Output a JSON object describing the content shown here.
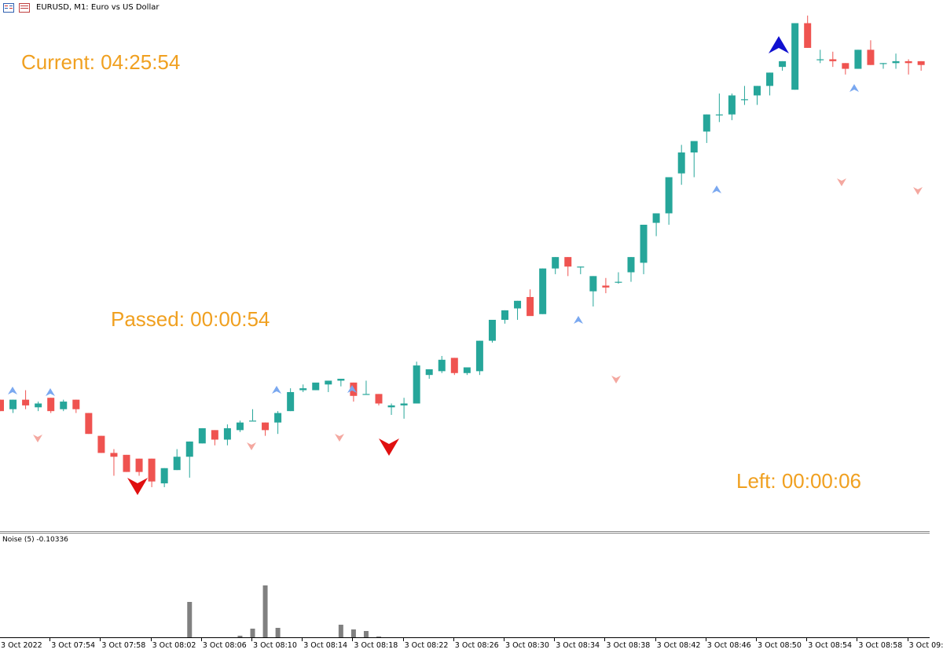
{
  "window": {
    "title": "EURUSD, M1:  Euro vs US Dollar",
    "icon": "chart-window-icon"
  },
  "timers": {
    "current": "Current: 04:25:54",
    "passed": "Passed: 00:00:54",
    "left": "Left: 00:00:06"
  },
  "indicator": {
    "label": "Noise (5) -0.10336"
  },
  "colors": {
    "bull": "#26a69a",
    "bear": "#ef5350",
    "timer": "#f0a020",
    "noise_bar": "#808080",
    "arrow_up_big": "#1010d0",
    "arrow_down_big": "#e01010",
    "arrow_up_small": "#7aa8f0",
    "arrow_down_small": "#f4a8a0"
  },
  "xaxis": {
    "labels": [
      "3 Oct 2022",
      "3 Oct 07:54",
      "3 Oct 07:58",
      "3 Oct 08:02",
      "3 Oct 08:06",
      "3 Oct 08:10",
      "3 Oct 08:14",
      "3 Oct 08:18",
      "3 Oct 08:22",
      "3 Oct 08:26",
      "3 Oct 08:30",
      "3 Oct 08:34",
      "3 Oct 08:38",
      "3 Oct 08:42",
      "3 Oct 08:46",
      "3 Oct 08:50",
      "3 Oct 08:54",
      "3 Oct 08:58",
      "3 Oct 09:"
    ]
  },
  "chart_data": [
    {
      "type": "candlestick",
      "title": "EURUSD, M1:  Euro vs US Dollar",
      "candles": [
        {
          "o": 1.6,
          "h": 1.6,
          "l": 0.4,
          "c": 0.4
        },
        {
          "o": 0.6,
          "h": 1.6,
          "l": 0.2,
          "c": 1.6
        },
        {
          "o": 1.6,
          "h": 2.6,
          "l": 0.6,
          "c": 1.0
        },
        {
          "o": 0.8,
          "h": 1.4,
          "l": 0.4,
          "c": 1.2
        },
        {
          "o": 1.8,
          "h": 1.8,
          "l": 0.2,
          "c": 0.4
        },
        {
          "o": 0.6,
          "h": 1.6,
          "l": 0.4,
          "c": 1.4
        },
        {
          "o": 1.6,
          "h": 1.6,
          "l": 0.2,
          "c": 0.6
        },
        {
          "o": 0.2,
          "h": 0.2,
          "l": -2.0,
          "c": -2.0
        },
        {
          "o": -2.2,
          "h": -2.2,
          "l": -4.0,
          "c": -4.0
        },
        {
          "o": -4.0,
          "h": -3.6,
          "l": -6.4,
          "c": -4.4
        },
        {
          "o": -4.2,
          "h": -4.2,
          "l": -6.0,
          "c": -6.0
        },
        {
          "o": -4.6,
          "h": -4.6,
          "l": -6.4,
          "c": -6.0
        },
        {
          "o": -4.6,
          "h": -4.6,
          "l": -7.6,
          "c": -7.0
        },
        {
          "o": -7.2,
          "h": -5.6,
          "l": -7.6,
          "c": -5.6
        },
        {
          "o": -5.8,
          "h": -3.6,
          "l": -5.8,
          "c": -4.4
        },
        {
          "o": -4.4,
          "h": -2.8,
          "l": -6.6,
          "c": -2.8
        },
        {
          "o": -3.0,
          "h": -1.4,
          "l": -3.0,
          "c": -1.4
        },
        {
          "o": -1.6,
          "h": -1.6,
          "l": -3.2,
          "c": -2.6
        },
        {
          "o": -2.6,
          "h": -1.0,
          "l": -3.2,
          "c": -1.4
        },
        {
          "o": -1.6,
          "h": -0.6,
          "l": -1.8,
          "c": -0.8
        },
        {
          "o": -0.6,
          "h": 0.6,
          "l": -0.6,
          "c": -0.6
        },
        {
          "o": -0.8,
          "h": -0.8,
          "l": -2.2,
          "c": -1.6
        },
        {
          "o": -0.8,
          "h": 0.4,
          "l": -2.0,
          "c": 0.2
        },
        {
          "o": 0.4,
          "h": 2.8,
          "l": 0.4,
          "c": 2.4
        },
        {
          "o": 2.6,
          "h": 3.2,
          "l": 2.4,
          "c": 2.8
        },
        {
          "o": 2.6,
          "h": 3.2,
          "l": 2.6,
          "c": 3.4
        },
        {
          "o": 3.2,
          "h": 3.6,
          "l": 2.4,
          "c": 3.6
        },
        {
          "o": 3.6,
          "h": 3.8,
          "l": 3.0,
          "c": 3.8
        },
        {
          "o": 3.4,
          "h": 3.4,
          "l": 1.4,
          "c": 2.0
        },
        {
          "o": 2.2,
          "h": 3.6,
          "l": 2.2,
          "c": 2.2
        },
        {
          "o": 2.2,
          "h": 2.2,
          "l": 1.0,
          "c": 1.2
        },
        {
          "o": 0.8,
          "h": 1.2,
          "l": 0.0,
          "c": 1.0
        },
        {
          "o": 1.0,
          "h": 1.8,
          "l": -0.4,
          "c": 1.2
        },
        {
          "o": 1.2,
          "h": 5.6,
          "l": 1.2,
          "c": 5.2
        },
        {
          "o": 4.2,
          "h": 4.8,
          "l": 3.8,
          "c": 4.8
        },
        {
          "o": 4.6,
          "h": 6.2,
          "l": 4.4,
          "c": 5.8
        },
        {
          "o": 6.0,
          "h": 6.0,
          "l": 4.2,
          "c": 4.4
        },
        {
          "o": 4.4,
          "h": 5.0,
          "l": 4.2,
          "c": 5.0
        },
        {
          "o": 4.6,
          "h": 7.8,
          "l": 4.2,
          "c": 7.8
        },
        {
          "o": 7.8,
          "h": 10.0,
          "l": 7.6,
          "c": 10.0
        },
        {
          "o": 10.0,
          "h": 11.0,
          "l": 9.6,
          "c": 11.0
        },
        {
          "o": 11.2,
          "h": 12.0,
          "l": 10.0,
          "c": 12.0
        },
        {
          "o": 12.4,
          "h": 13.2,
          "l": 10.8,
          "c": 10.4
        },
        {
          "o": 10.6,
          "h": 15.4,
          "l": 10.6,
          "c": 15.4
        },
        {
          "o": 15.4,
          "h": 16.6,
          "l": 14.8,
          "c": 16.6
        },
        {
          "o": 16.6,
          "h": 16.6,
          "l": 14.6,
          "c": 15.6
        },
        {
          "o": 15.6,
          "h": 15.6,
          "l": 14.8,
          "c": 15.6
        },
        {
          "o": 13.0,
          "h": 14.6,
          "l": 11.4,
          "c": 14.6
        },
        {
          "o": 13.6,
          "h": 14.4,
          "l": 12.8,
          "c": 13.4
        },
        {
          "o": 14.0,
          "h": 15.0,
          "l": 13.8,
          "c": 14.0
        },
        {
          "o": 15.0,
          "h": 16.6,
          "l": 14.0,
          "c": 16.6
        },
        {
          "o": 16.0,
          "h": 19.6,
          "l": 14.8,
          "c": 20.0
        },
        {
          "o": 20.2,
          "h": 21.2,
          "l": 18.8,
          "c": 21.2
        },
        {
          "o": 21.2,
          "h": 25.0,
          "l": 20.0,
          "c": 25.0
        },
        {
          "o": 25.4,
          "h": 28.4,
          "l": 24.2,
          "c": 27.6
        },
        {
          "o": 27.6,
          "h": 28.8,
          "l": 25.0,
          "c": 28.8
        },
        {
          "o": 29.8,
          "h": 31.6,
          "l": 28.6,
          "c": 31.6
        },
        {
          "o": 31.6,
          "h": 33.8,
          "l": 30.8,
          "c": 31.6
        },
        {
          "o": 31.6,
          "h": 33.8,
          "l": 31.0,
          "c": 33.6
        },
        {
          "o": 33.2,
          "h": 34.6,
          "l": 32.6,
          "c": 33.2
        },
        {
          "o": 33.6,
          "h": 34.6,
          "l": 32.6,
          "c": 34.6
        },
        {
          "o": 34.6,
          "h": 36.0,
          "l": 33.6,
          "c": 36.0
        },
        {
          "o": 36.6,
          "h": 37.2,
          "l": 36.2,
          "c": 37.2
        },
        {
          "o": 34.2,
          "h": 41.2,
          "l": 34.2,
          "c": 41.2
        },
        {
          "o": 41.2,
          "h": 42.0,
          "l": 38.6,
          "c": 38.6
        },
        {
          "o": 37.4,
          "h": 38.4,
          "l": 37.0,
          "c": 37.4
        },
        {
          "o": 37.4,
          "h": 38.2,
          "l": 36.6,
          "c": 37.2
        },
        {
          "o": 37.0,
          "h": 37.0,
          "l": 35.8,
          "c": 36.4
        },
        {
          "o": 36.4,
          "h": 38.4,
          "l": 36.4,
          "c": 38.4
        },
        {
          "o": 38.4,
          "h": 39.4,
          "l": 36.8,
          "c": 36.8
        },
        {
          "o": 37.0,
          "h": 37.0,
          "l": 36.4,
          "c": 37.0
        },
        {
          "o": 37.0,
          "h": 38.0,
          "l": 36.4,
          "c": 37.2
        },
        {
          "o": 37.2,
          "h": 37.4,
          "l": 35.8,
          "c": 37.0
        },
        {
          "o": 37.2,
          "h": 37.2,
          "l": 36.2,
          "c": 36.8
        }
      ]
    },
    {
      "type": "bar",
      "title": "Noise (5) -0.10336",
      "values": [
        0,
        0,
        0,
        0,
        0,
        0,
        0,
        0,
        0,
        0,
        0,
        0,
        0,
        0,
        0,
        45,
        0,
        0,
        0,
        2,
        11,
        66,
        12,
        0,
        0,
        0,
        0,
        16,
        10,
        8,
        1,
        0,
        0,
        0,
        0,
        0,
        0,
        0,
        0,
        0,
        0,
        0,
        0,
        0,
        0,
        0,
        0,
        0,
        0,
        0,
        0,
        0,
        0,
        0,
        0,
        0,
        0,
        0,
        0,
        0,
        0,
        0,
        0,
        0,
        0,
        0,
        0,
        0,
        0,
        0,
        0,
        0,
        0,
        0
      ]
    }
  ]
}
